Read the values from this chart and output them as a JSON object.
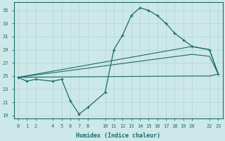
{
  "xlabel": "Humidex (Indice chaleur)",
  "bg_color": "#cde8e8",
  "grid_color": "#b8d8d8",
  "line_color": "#1a6b6b",
  "xlim": [
    -0.5,
    23.5
  ],
  "ylim": [
    18.5,
    36.2
  ],
  "xticks": [
    0,
    1,
    2,
    4,
    5,
    6,
    7,
    8,
    10,
    11,
    12,
    13,
    14,
    15,
    16,
    17,
    18,
    19,
    20,
    22,
    23
  ],
  "yticks": [
    19,
    21,
    23,
    25,
    27,
    29,
    31,
    33,
    35
  ],
  "line1_x": [
    0,
    1,
    2,
    4,
    5,
    6,
    7,
    8,
    10,
    11,
    12,
    13,
    14,
    15,
    16,
    17,
    18,
    19,
    20,
    22,
    23
  ],
  "line1_y": [
    24.8,
    24.2,
    24.5,
    24.2,
    24.5,
    21.2,
    19.2,
    20.2,
    22.5,
    29.0,
    31.2,
    34.2,
    35.4,
    35.0,
    34.2,
    33.0,
    31.5,
    30.5,
    29.5,
    29.0,
    25.3
  ],
  "line2_x": [
    0,
    20,
    22,
    23
  ],
  "line2_y": [
    24.8,
    29.5,
    29.0,
    25.3
  ],
  "line3_x": [
    0,
    20,
    22,
    23
  ],
  "line3_y": [
    24.8,
    28.3,
    28.0,
    25.3
  ],
  "line4_x": [
    0,
    20,
    22,
    23
  ],
  "line4_y": [
    24.8,
    25.0,
    25.0,
    25.3
  ]
}
